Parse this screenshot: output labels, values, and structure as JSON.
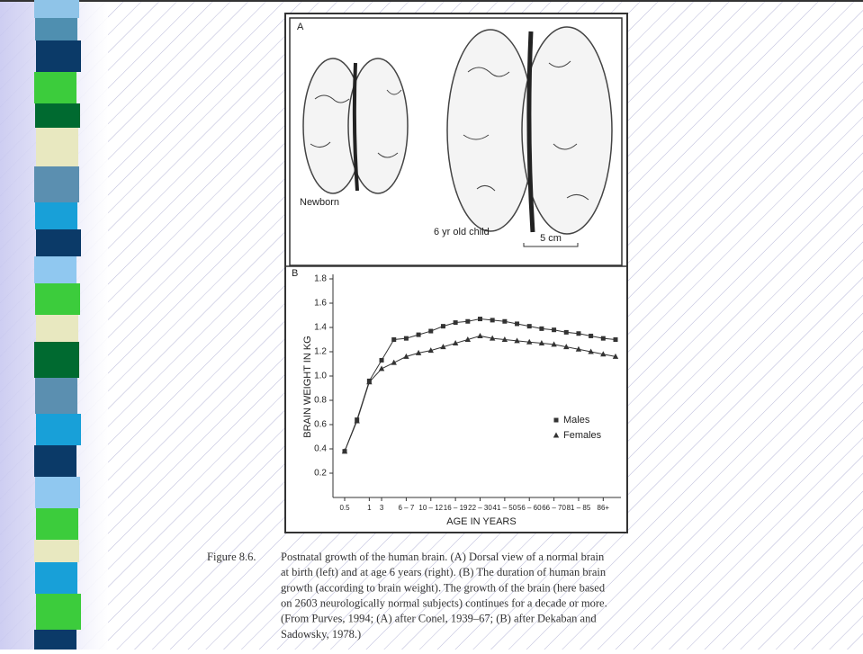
{
  "panel_a": {
    "label": "A",
    "newborn": "Newborn",
    "child": "6 yr old child",
    "scale": "5 cm"
  },
  "chart_data": {
    "type": "line",
    "panel_label": "B",
    "y_label": "BRAIN WEIGHT IN KG",
    "x_label": "AGE IN YEARS",
    "categories": [
      "0.5",
      null,
      "1",
      "3",
      null,
      "6 – 7",
      null,
      "10 – 12",
      null,
      "16 – 19",
      null,
      "22 – 30",
      null,
      "41 – 50",
      null,
      "56 – 60",
      null,
      "66 – 70",
      null,
      "81 – 85",
      null,
      "86+",
      null
    ],
    "series": [
      {
        "name": "Males",
        "color": "#333333",
        "marker": "square",
        "values": [
          0.38,
          0.64,
          0.96,
          1.13,
          1.3,
          1.31,
          1.34,
          1.37,
          1.41,
          1.44,
          1.45,
          1.47,
          1.46,
          1.45,
          1.43,
          1.41,
          1.39,
          1.38,
          1.36,
          1.35,
          1.33,
          1.31,
          1.3
        ]
      },
      {
        "name": "Females",
        "color": "#333333",
        "marker": "triangle",
        "values": [
          0.38,
          0.63,
          0.95,
          1.06,
          1.11,
          1.16,
          1.19,
          1.21,
          1.24,
          1.27,
          1.3,
          1.33,
          1.31,
          1.3,
          1.29,
          1.28,
          1.27,
          1.26,
          1.24,
          1.22,
          1.2,
          1.18,
          1.16
        ]
      }
    ],
    "ylim": [
      0,
      1.8
    ],
    "yticks": [
      0.2,
      0.4,
      0.6,
      0.8,
      {
        "value": 1,
        "label": "1.0"
      },
      1.2,
      1.4,
      1.6,
      1.8
    ],
    "legend": "right"
  },
  "caption": {
    "label": "Figure 8.6.",
    "lines": [
      "Postnatal growth of the human brain. (A) Dorsal view of a normal brain",
      "at birth (left) and at age 6 years (right). (B) The duration of human brain",
      "growth (according to brain weight). The growth of the brain (here based",
      "on 2603 neurologically normal subjects) continues for a decade or more.",
      "(From Purves, 1994; (A) after Conel, 1939–67; (B) after Dekaban and",
      "Sadowsky, 1978.)"
    ]
  }
}
